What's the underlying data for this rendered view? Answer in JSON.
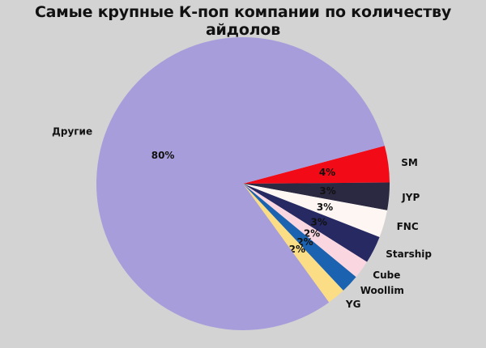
{
  "chart_data": {
    "type": "pie",
    "title": "Самые крупные К-поп компании по количеству айдолов",
    "start_angle_deg": 15,
    "clockwise": true,
    "slices": [
      {
        "label": "SM",
        "value": 4,
        "display": "4%",
        "color": "#f20a17"
      },
      {
        "label": "JYP",
        "value": 3,
        "display": "3%",
        "color": "#2b2842"
      },
      {
        "label": "FNC",
        "value": 3,
        "display": "3%",
        "color": "#fdf6f3"
      },
      {
        "label": "Starship",
        "value": 3,
        "display": "3%",
        "color": "#262962"
      },
      {
        "label": "Cube",
        "value": 2,
        "display": "2%",
        "color": "#fad7e0"
      },
      {
        "label": "Woollim",
        "value": 2,
        "display": "2%",
        "color": "#1b62b0"
      },
      {
        "label": "YG",
        "value": 2,
        "display": "2%",
        "color": "#fbdd86"
      },
      {
        "label": "Другие",
        "value": 80,
        "display": "80%",
        "color": "#a89ddb"
      }
    ]
  }
}
